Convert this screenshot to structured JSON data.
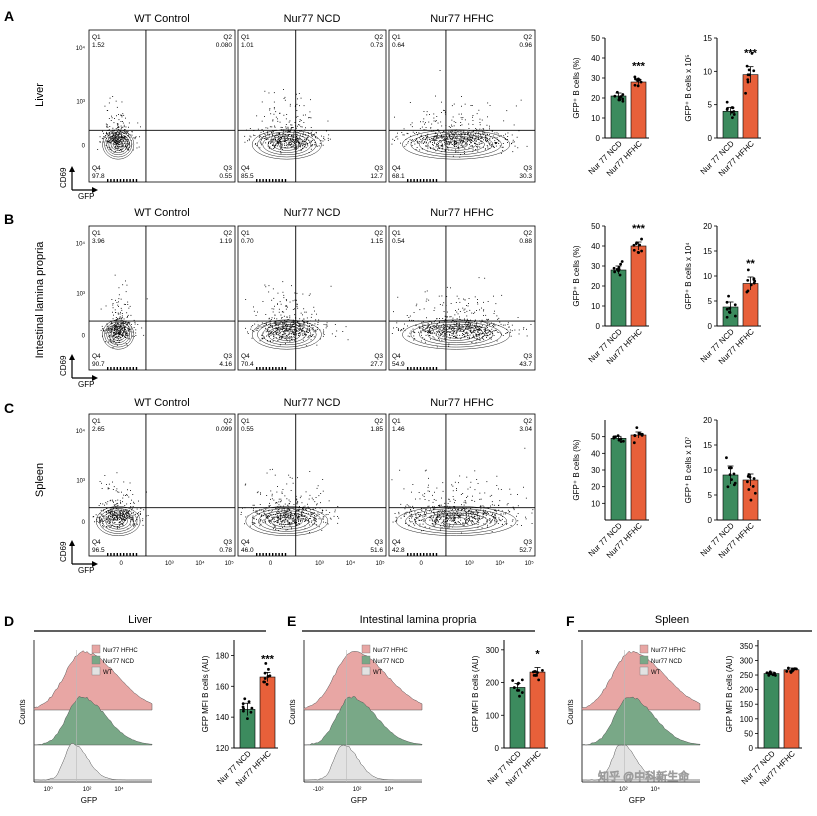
{
  "figure": {
    "panel_letters": [
      "A",
      "B",
      "C",
      "D",
      "E",
      "F"
    ],
    "column_titles": [
      "WT Control",
      "Nur77 NCD",
      "Nur77 HFHC"
    ],
    "row_labels": [
      "Liver",
      "Intestinal lamina propria",
      "Spleen"
    ],
    "axis_x": "GFP",
    "axis_y": "CD69",
    "quadrant_labels": [
      "Q1",
      "Q2",
      "Q3",
      "Q4"
    ],
    "flow_ticks": [
      "0",
      "10³",
      "10⁴",
      "10⁵"
    ],
    "flow_yticks": [
      "0",
      "10³",
      "10⁴"
    ],
    "flow_rows": [
      [
        {
          "q1": "1.52",
          "q2": "0.080",
          "q3": "0.55",
          "q4": "97.8"
        },
        {
          "q1": "1.01",
          "q2": "0.73",
          "q3": "12.7",
          "q4": "85.5"
        },
        {
          "q1": "0.64",
          "q2": "0.96",
          "q3": "30.3",
          "q4": "68.1"
        }
      ],
      [
        {
          "q1": "3.96",
          "q2": "1.19",
          "q3": "4.16",
          "q4": "90.7"
        },
        {
          "q1": "0.70",
          "q2": "1.15",
          "q3": "27.7",
          "q4": "70.4"
        },
        {
          "q1": "0.54",
          "q2": "0.88",
          "q3": "43.7",
          "q4": "54.9"
        }
      ],
      [
        {
          "q1": "2.65",
          "q2": "0.099",
          "q3": "0.78",
          "q4": "96.5"
        },
        {
          "q1": "0.55",
          "q2": "1.85",
          "q3": "51.6",
          "q4": "46.0"
        },
        {
          "q1": "1.46",
          "q2": "3.04",
          "q3": "52.7",
          "q4": "42.8"
        }
      ]
    ],
    "group_labels": [
      "Nur 77 NCD",
      "Nur77 HFHC"
    ],
    "histogram": {
      "titles": [
        "Liver",
        "Intestinal lamina propria",
        "Spleen"
      ],
      "legend": [
        "Nur77 HFHC",
        "Nur77 NCD",
        "WT"
      ],
      "ylabel": "Counts",
      "xlabel": "GFP",
      "xticks": [
        [
          "10⁰",
          "10²",
          "10⁴"
        ],
        [
          "-10²",
          "10²",
          "10⁴"
        ],
        [
          "10²",
          "10⁴"
        ]
      ]
    },
    "watermark": "知乎 @中科新生命",
    "colors": {
      "ncd": "#3c8b5e",
      "hfhc": "#e8603a",
      "hist_hfhc": "#e8a6a4",
      "hist_ncd": "#79a887",
      "hist_wt": "#e2e2e2"
    }
  },
  "chart_data": [
    {
      "type": "bar",
      "panel": "A",
      "ylabel": "GFP⁺ B cells (%)",
      "categories": [
        "Nur 77 NCD",
        "Nur77 HFHC"
      ],
      "values": [
        21,
        28
      ],
      "errors": [
        1.5,
        1.2
      ],
      "ylim": [
        0,
        50
      ],
      "yticks": [
        0,
        10,
        20,
        30,
        40,
        50
      ],
      "significance": "***"
    },
    {
      "type": "bar",
      "panel": "A",
      "ylabel": "GFP⁺ B cells x 10⁵",
      "categories": [
        "Nur 77 NCD",
        "Nur77 HFHC"
      ],
      "values": [
        4.0,
        9.5
      ],
      "errors": [
        0.6,
        1.2
      ],
      "ylim": [
        0,
        15
      ],
      "yticks": [
        0,
        5,
        10,
        15
      ],
      "significance": "***"
    },
    {
      "type": "bar",
      "panel": "B",
      "ylabel": "GFP⁺ B cells (%)",
      "categories": [
        "Nur 77 NCD",
        "Nur77 HFHC"
      ],
      "values": [
        28,
        40
      ],
      "errors": [
        2,
        2
      ],
      "ylim": [
        0,
        50
      ],
      "yticks": [
        0,
        10,
        20,
        30,
        40,
        50
      ],
      "significance": "***"
    },
    {
      "type": "bar",
      "panel": "B",
      "ylabel": "GFP⁺ B cells x 10⁴",
      "categories": [
        "Nur 77 NCD",
        "Nur77 HFHC"
      ],
      "values": [
        3.8,
        8.5
      ],
      "errors": [
        1.0,
        1.3
      ],
      "ylim": [
        0,
        20
      ],
      "yticks": [
        0,
        5,
        10,
        15,
        20
      ],
      "significance": "**"
    },
    {
      "type": "bar",
      "panel": "C",
      "ylabel": "GFP⁺ B cells (%)",
      "categories": [
        "Nur 77 NCD",
        "Nur77 HFHC"
      ],
      "values": [
        49,
        51
      ],
      "errors": [
        1.2,
        1.8
      ],
      "ylim": [
        0,
        60
      ],
      "yticks": [
        10,
        20,
        30,
        40,
        50
      ],
      "significance": ""
    },
    {
      "type": "bar",
      "panel": "C",
      "ylabel": "GFP⁺ B cells x 10⁷",
      "categories": [
        "Nur 77 NCD",
        "Nur77 HFHC"
      ],
      "values": [
        9.0,
        8.0
      ],
      "errors": [
        1.8,
        1.2
      ],
      "ylim": [
        0,
        20
      ],
      "yticks": [
        0,
        5,
        10,
        15,
        20
      ],
      "significance": ""
    },
    {
      "type": "bar",
      "panel": "D",
      "ylabel": "GFP MFI B cells (AU)",
      "categories": [
        "Nur 77 NCD",
        "Nur77 HFHC"
      ],
      "values": [
        145,
        166
      ],
      "errors": [
        4,
        3
      ],
      "ylim": [
        120,
        190
      ],
      "yticks": [
        120,
        140,
        160,
        180
      ],
      "significance": "***"
    },
    {
      "type": "bar",
      "panel": "E",
      "ylabel": "GFP MFI B cells (AU)",
      "categories": [
        "Nur 77 NCD",
        "Nur77 HFHC"
      ],
      "values": [
        185,
        232
      ],
      "errors": [
        12,
        14
      ],
      "ylim": [
        0,
        330
      ],
      "yticks": [
        0,
        100,
        200,
        300
      ],
      "significance": "*"
    },
    {
      "type": "bar",
      "panel": "F",
      "ylabel": "GFP MFI B cells (AU)",
      "categories": [
        "Nur 77 NCD",
        "Nur77 HFHC"
      ],
      "values": [
        255,
        268
      ],
      "errors": [
        5,
        6
      ],
      "ylim": [
        0,
        370
      ],
      "yticks": [
        0,
        50,
        100,
        150,
        200,
        250,
        300,
        350
      ],
      "significance": ""
    }
  ]
}
